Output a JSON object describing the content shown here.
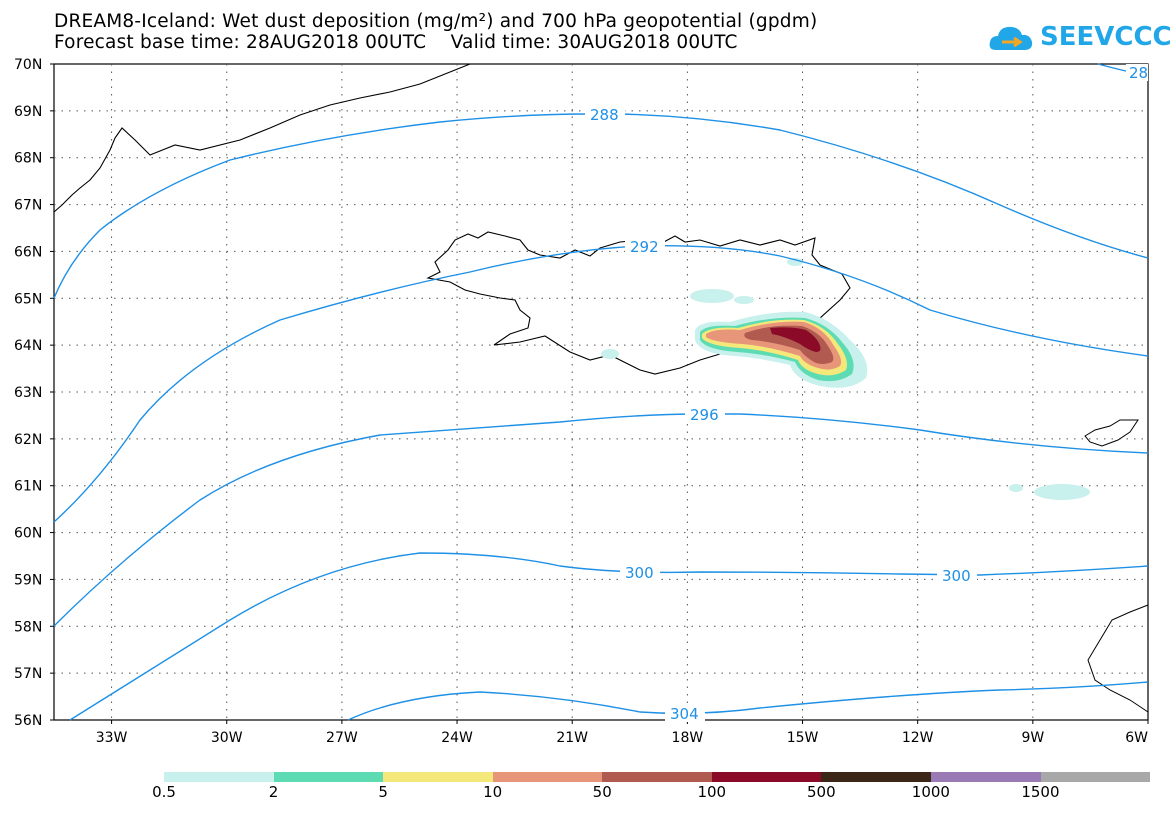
{
  "title": {
    "line1": "DREAM8-Iceland: Wet dust deposition (mg/m²) and 700 hPa geopotential (gpdm)",
    "line2": "Forecast base time: 28AUG2018 00UTC    Valid time: 30AUG2018 00UTC"
  },
  "logo": {
    "text": "SEEVCCC",
    "color": "#21a7e8"
  },
  "map": {
    "lat_labels": [
      "70N",
      "69N",
      "68N",
      "67N",
      "66N",
      "65N",
      "64N",
      "63N",
      "62N",
      "61N",
      "60N",
      "59N",
      "58N",
      "57N",
      "56N"
    ],
    "lon_labels": [
      "33W",
      "30W",
      "27W",
      "24W",
      "21W",
      "18W",
      "15W",
      "12W",
      "9W",
      "6W"
    ],
    "lat_range": [
      56,
      70
    ],
    "lon_range": [
      -34.5,
      -6
    ],
    "gridlines": "dotted",
    "contour_color": "#1e90e6",
    "contour_labels": [
      "288",
      "292",
      "296",
      "300",
      "300",
      "304",
      "28"
    ]
  },
  "legend": {
    "colors": [
      "#c8f0ec",
      "#5ddcb4",
      "#f5e87a",
      "#e8967a",
      "#b05a50",
      "#8a0a28",
      "#3c2618",
      "#9a7ab4",
      "#a8a8a8"
    ],
    "labels": [
      "0.5",
      "2",
      "5",
      "10",
      "50",
      "100",
      "500",
      "1000",
      "1500"
    ]
  }
}
